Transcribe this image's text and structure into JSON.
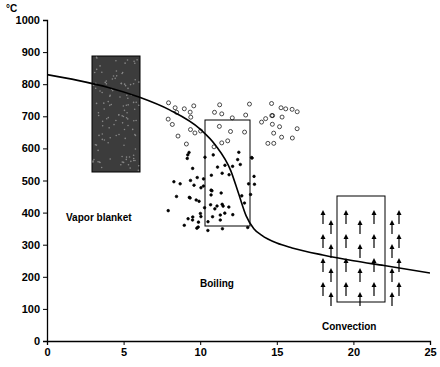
{
  "chart_data": {
    "type": "line",
    "y_label": "°C",
    "x": [
      0,
      2,
      4,
      6,
      8,
      10,
      11,
      12,
      12.5,
      13,
      13.5,
      14,
      15,
      16,
      18,
      20,
      22,
      25
    ],
    "values": [
      830,
      812,
      790,
      760,
      720,
      660,
      610,
      530,
      460,
      390,
      350,
      330,
      305,
      290,
      268,
      250,
      235,
      212
    ],
    "color": "#000000",
    "xlim": [
      0,
      25
    ],
    "xticks": [
      0,
      5,
      10,
      15,
      20,
      25
    ],
    "ylim": [
      0,
      1000
    ],
    "yticks": [
      0,
      100,
      200,
      300,
      400,
      500,
      600,
      700,
      800,
      900,
      1000
    ],
    "grid": false,
    "annotations": [
      "Vapor blanket",
      "Boiling",
      "Convection"
    ]
  }
}
